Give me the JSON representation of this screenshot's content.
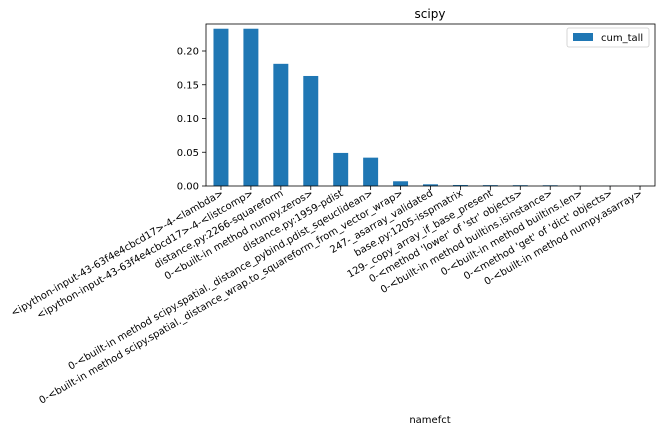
{
  "chart_data": {
    "type": "bar",
    "title": "scipy",
    "xlabel": "namefct",
    "ylabel": "",
    "ylim": [
      0,
      0.24
    ],
    "yticks": [
      "0.00",
      "0.05",
      "0.10",
      "0.15",
      "0.20"
    ],
    "legend_position": "top-right",
    "categories": [
      "<ipython-input-43-63f4e4cbcd17>-4-<lambda>",
      "<ipython-input-43-63f4e4cbcd17>-4-<listcomp>",
      "distance.py:2266-squareform",
      "0-<built-in method numpy.zeros>",
      "distance.py:1959-pdist",
      "0-<built-in method scipy.spatial._distance_pybind.pdist_sqeuclidean>",
      "0-<built-in method scipy.spatial._distance_wrap.to_squareform_from_vector_wrap>",
      "247-_asarray_validated",
      "base.py:1205-isspmatrix",
      "129-_copy_array_if_base_present",
      "0-<method 'lower' of 'str' objects>",
      "0-<built-in method builtins.isinstance>",
      "0-<built-in method builtins.len>",
      "0-<method 'get' of 'dict' objects>",
      "0-<built-in method numpy.asarray>"
    ],
    "series": [
      {
        "name": "cum_tall",
        "color": "#1f77b4",
        "values": [
          0.233,
          0.233,
          0.181,
          0.163,
          0.049,
          0.042,
          0.007,
          0.0025,
          0.0015,
          0.0013,
          0.0012,
          0.0011,
          0.0003,
          0.0002,
          0.0001
        ]
      }
    ]
  }
}
